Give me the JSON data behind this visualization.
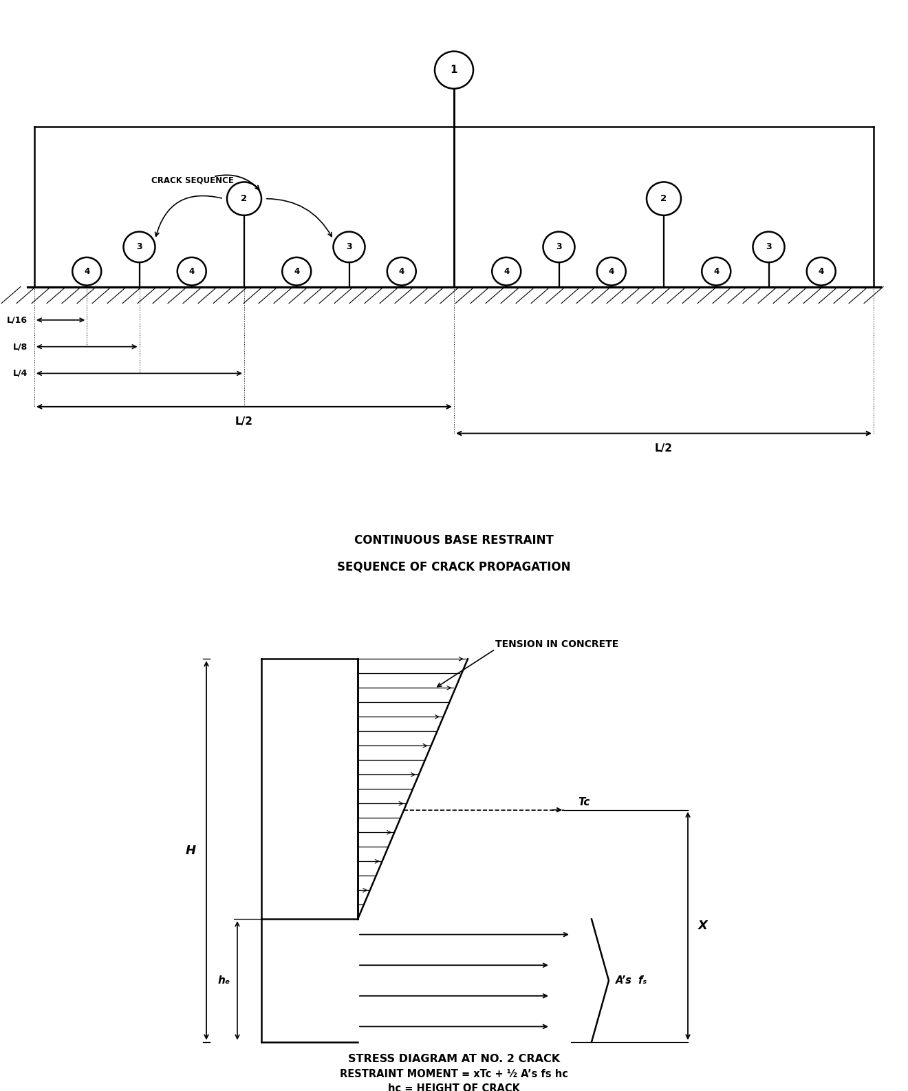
{
  "bg_color": "#ffffff",
  "line_color": "#000000",
  "fig_width": 13.2,
  "fig_height": 15.85,
  "top_title1": "CONTINUOUS BASE RESTRAINT",
  "top_title2": "SEQUENCE OF CRACK PROPAGATION",
  "bot_title1": "STRESS DIAGRAM AT NO. 2 CRACK",
  "bot_title2": "RESTRAINT MOMENT = xTc + ½ A’s fs hc",
  "bot_title3": "hc = HEIGHT OF CRACK",
  "crack_seq_label": "CRACK SEQUENCE",
  "tension_label": "TENSION IN CONCRETE",
  "tc_label": "Tc",
  "H_label": "H",
  "hc_label": "hₑ",
  "X_label": "X",
  "As_label": "A’s  fₛ",
  "dim_labels": [
    "L/16",
    "L/8",
    "L/4",
    "L/2",
    "L/2"
  ]
}
